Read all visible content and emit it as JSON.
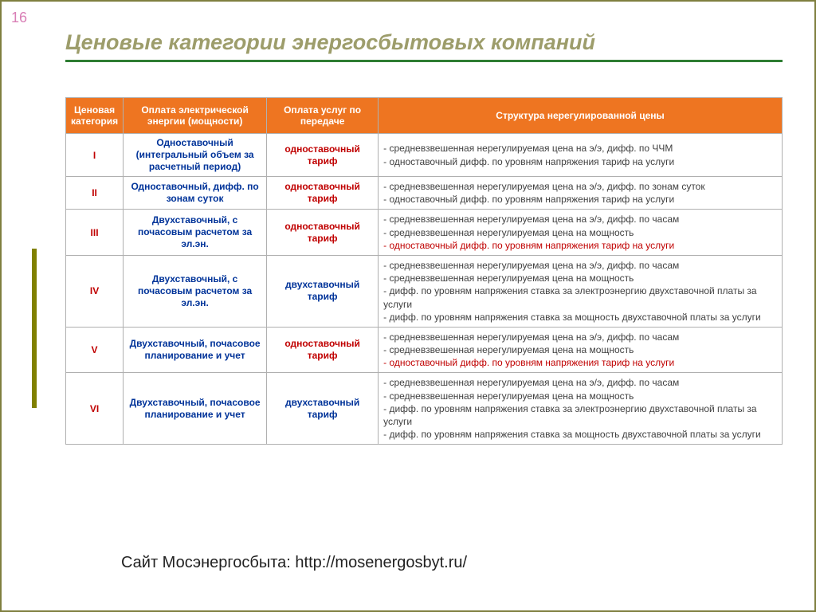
{
  "page_number": "16",
  "title": "Ценовые категории энергосбытовых компаний",
  "footer": "Сайт Мосэнергосбыта: http://mosenergosbyt.ru/",
  "colors": {
    "border": "#7f7f3f",
    "title_text": "#9d9d6b",
    "title_underline": "#2e7d32",
    "page_num": "#d97fb6",
    "header_bg": "#ee7521",
    "header_text": "#ffffff",
    "cell_border": "#b0b0b0",
    "cat_text": "#c00000",
    "blue_text": "#003399",
    "struct_text": "#404040",
    "struct_red": "#c00000",
    "left_bar": "#808000"
  },
  "table": {
    "headers": {
      "cat": "Ценовая категория",
      "energy": "Оплата электрической энергии (мощности)",
      "transfer": "Оплата услуг по передаче",
      "structure": "Структура нерегулированной цены"
    },
    "rows": [
      {
        "cat": "I",
        "energy": "Одноставочный (интегральный объем за расчетный период)",
        "transfer": "одноставочный тариф",
        "transfer_type": "one",
        "structure": [
          {
            "text": "- средневзвешенная нерегулируемая цена на э/э, дифф. по ЧЧМ",
            "red": false
          },
          {
            "text": "- одноставочный дифф. по уровням напряжения тариф на услуги",
            "red": false
          }
        ]
      },
      {
        "cat": "II",
        "energy": "Одноставочный, дифф. по зонам суток",
        "transfer": "одноставочный тариф",
        "transfer_type": "one",
        "structure": [
          {
            "text": "- средневзвешенная нерегулируемая цена на э/э, дифф. по зонам суток",
            "red": false
          },
          {
            "text": "- одноставочный дифф. по уровням напряжения тариф на услуги",
            "red": false
          }
        ]
      },
      {
        "cat": "III",
        "energy": "Двухставочный, с почасовым расчетом за эл.эн.",
        "transfer": "одноставочный тариф",
        "transfer_type": "one",
        "structure": [
          {
            "text": "- средневзвешенная нерегулируемая цена на э/э, дифф. по часам",
            "red": false
          },
          {
            "text": "- средневзвешенная нерегулируемая цена на мощность",
            "red": false
          },
          {
            "text": "- одноставочный дифф. по уровням напряжения тариф на услуги",
            "red": true
          }
        ]
      },
      {
        "cat": "IV",
        "energy": "Двухставочный, с почасовым расчетом за эл.эн.",
        "transfer": "двухставочный тариф",
        "transfer_type": "two",
        "structure": [
          {
            "text": "- средневзвешенная нерегулируемая цена на э/э, дифф. по часам",
            "red": false
          },
          {
            "text": "- средневзвешенная нерегулируемая цена на мощность",
            "red": false
          },
          {
            "text": "- дифф. по уровням напряжения ставка за электроэнергию двухставочной платы за услуги",
            "red": false
          },
          {
            "text": " - дифф. по уровням напряжения ставка за мощность двухставочной платы за услуги",
            "red": false
          }
        ]
      },
      {
        "cat": "V",
        "energy": "Двухставочный, почасовое планирование и учет",
        "transfer": "одноставочный тариф",
        "transfer_type": "one",
        "structure": [
          {
            "text": "- средневзвешенная нерегулируемая цена на э/э, дифф. по часам",
            "red": false
          },
          {
            "text": "- средневзвешенная нерегулируемая цена на мощность",
            "red": false
          },
          {
            "text": "- одноставочный дифф. по уровням напряжения тариф на услуги",
            "red": true
          }
        ]
      },
      {
        "cat": "VI",
        "energy": "Двухставочный, почасовое планирование и учет",
        "transfer": "двухставочный тариф",
        "transfer_type": "two",
        "structure": [
          {
            "text": "- средневзвешенная нерегулируемая цена на э/э, дифф. по часам",
            "red": false
          },
          {
            "text": "- средневзвешенная нерегулируемая цена на мощность",
            "red": false
          },
          {
            "text": "- дифф. по уровням напряжения ставка за электроэнергию двухставочной платы за услуги",
            "red": false
          },
          {
            "text": " - дифф. по уровням напряжения ставка за мощность двухставочной платы за услуги",
            "red": false
          }
        ]
      }
    ]
  }
}
